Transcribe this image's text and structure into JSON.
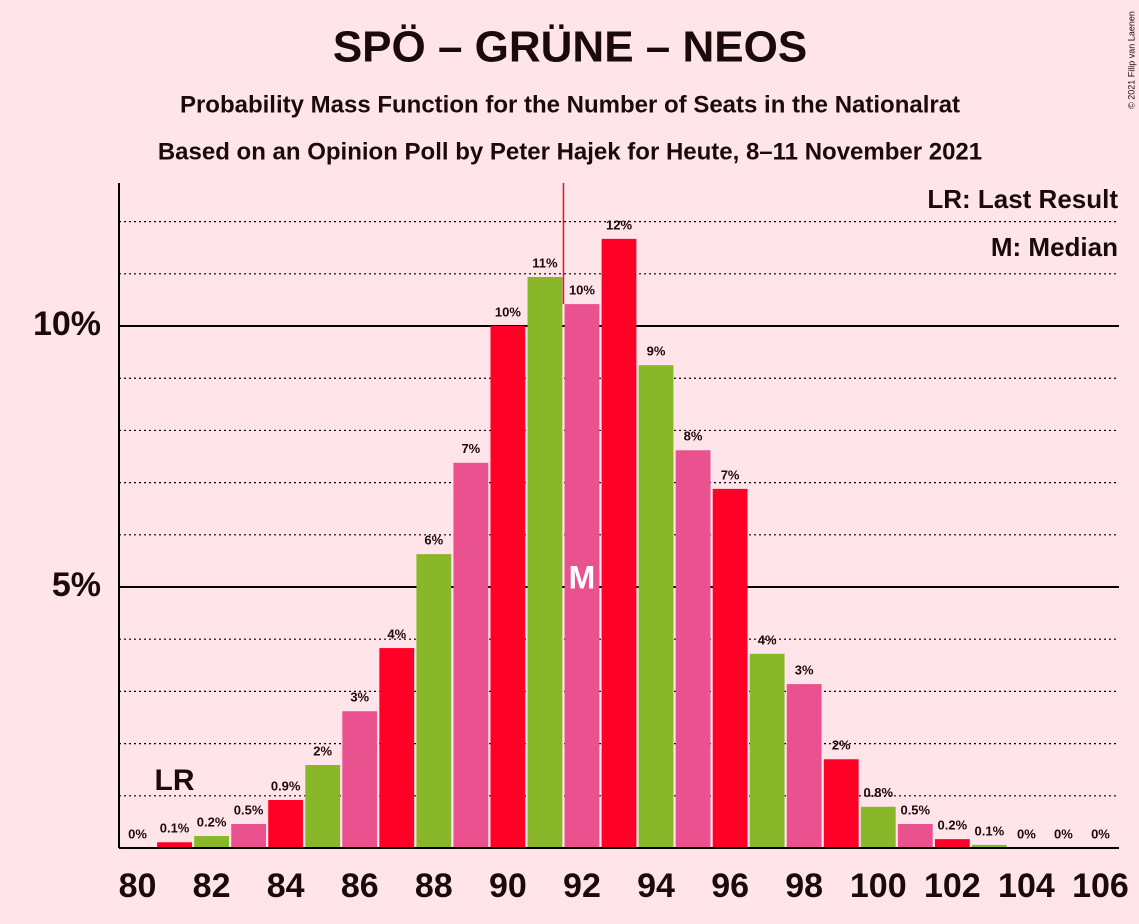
{
  "chart_data": {
    "type": "bar",
    "title": "SPÖ – GRÜNE – NEOS",
    "subtitle": "Probability Mass Function for the Number of Seats in the Nationalrat",
    "subtitle2": "Based on an Opinion Poll by Peter Hajek for Heute, 8–11 November 2021",
    "legend_last_result": "LR: Last Result",
    "legend_median": "M: Median",
    "copyright": "© 2021 Filip van Laenen",
    "x": [
      80,
      81,
      82,
      83,
      84,
      85,
      86,
      87,
      88,
      89,
      90,
      91,
      92,
      93,
      94,
      95,
      96,
      97,
      98,
      99,
      100,
      101,
      102,
      103,
      104,
      105,
      106
    ],
    "values": [
      0,
      0.11,
      0.23,
      0.46,
      0.92,
      1.59,
      2.62,
      3.83,
      5.63,
      7.38,
      10.0,
      10.94,
      10.42,
      11.67,
      9.25,
      7.62,
      6.88,
      3.72,
      3.14,
      1.7,
      0.79,
      0.46,
      0.17,
      0.06,
      0,
      0,
      0
    ],
    "value_labels": [
      "0%",
      "0.1%",
      "0.2%",
      "0.5%",
      "0.9%",
      "2%",
      "3%",
      "4%",
      "6%",
      "7%",
      "10%",
      "11%",
      "10%",
      "12%",
      "9%",
      "8%",
      "7%",
      "4%",
      "3%",
      "2%",
      "0.8%",
      "0.5%",
      "0.2%",
      "0.1%",
      "0%",
      "0%",
      "0%"
    ],
    "colors": [
      "#e9528e",
      "#ff0026",
      "#88b82a",
      "#e9528e",
      "#ff0026",
      "#88b82a",
      "#e9528e",
      "#ff0026",
      "#88b82a",
      "#e9528e",
      "#ff0026",
      "#88b82a",
      "#e9528e",
      "#ff0026",
      "#88b82a",
      "#e9528e",
      "#ff0026",
      "#88b82a",
      "#e9528e",
      "#ff0026",
      "#88b82a",
      "#e9528e",
      "#ff0026",
      "#88b82a",
      "#e9528e",
      "#ff0026",
      "#88b82a"
    ],
    "xlim": [
      79.5,
      106.5
    ],
    "xticks": [
      80,
      82,
      84,
      86,
      88,
      90,
      92,
      94,
      96,
      98,
      100,
      102,
      104,
      106
    ],
    "ylim": [
      0,
      12.74
    ],
    "yticks": [
      {
        "value": 5,
        "label": "5%"
      },
      {
        "value": 10,
        "label": "10%"
      }
    ],
    "minor_yticks": [
      1,
      2,
      3,
      4,
      6,
      7,
      8,
      9,
      11,
      12
    ],
    "last_result": 81,
    "last_result_label": "LR",
    "median": 92,
    "median_label": "M",
    "median_color": "#ff0026"
  }
}
